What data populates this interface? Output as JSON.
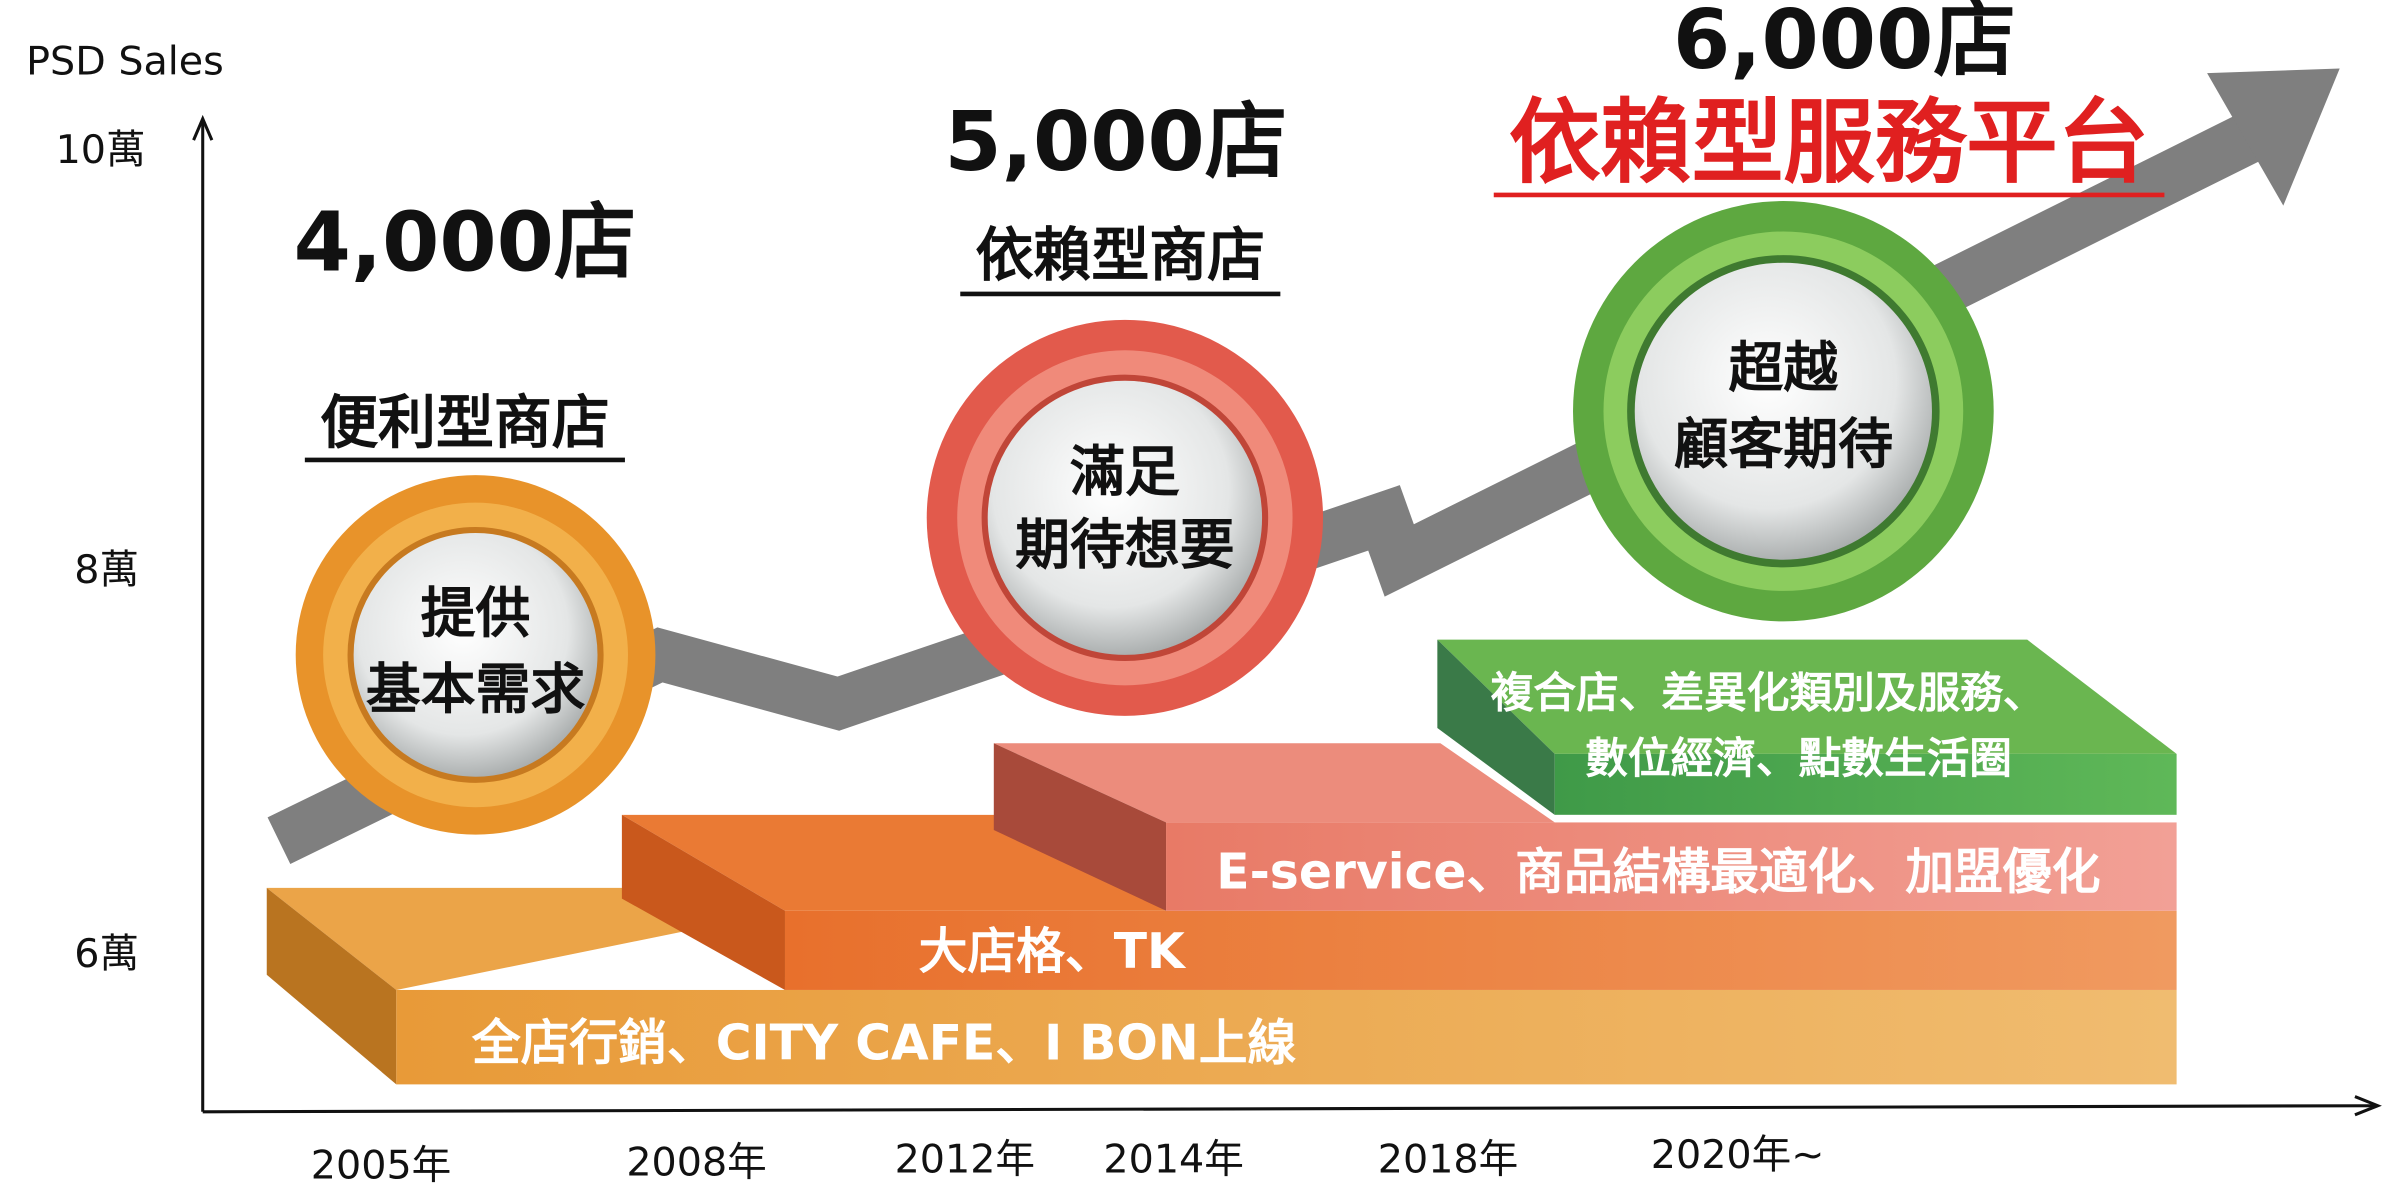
{
  "axis": {
    "y_label": "PSD Sales",
    "y_ticks": [
      "10萬",
      "8萬",
      "6萬"
    ],
    "x_ticks": [
      "2005年",
      "2008年",
      "2012年",
      "2014年",
      "2018年",
      "2020年~"
    ]
  },
  "stages": [
    {
      "count": "4,000店",
      "type": "便利型商店",
      "circle": [
        "提供",
        "基本需求"
      ]
    },
    {
      "count": "5,000店",
      "type": "依賴型商店",
      "circle": [
        "滿足",
        "期待想要"
      ]
    },
    {
      "count": "6,000店",
      "type": "依賴型服務平台",
      "circle": [
        "超越",
        "顧客期待"
      ]
    }
  ],
  "bars": [
    {
      "lines": [
        "全店行銷、CITY CAFE、I BON上線"
      ]
    },
    {
      "lines": [
        "大店格、TK"
      ]
    },
    {
      "lines": [
        "E-service、商品結構最適化、加盟優化"
      ]
    },
    {
      "lines": [
        "複合店、差異化類別及服務、",
        "數位經濟、點數生活圈"
      ]
    }
  ]
}
